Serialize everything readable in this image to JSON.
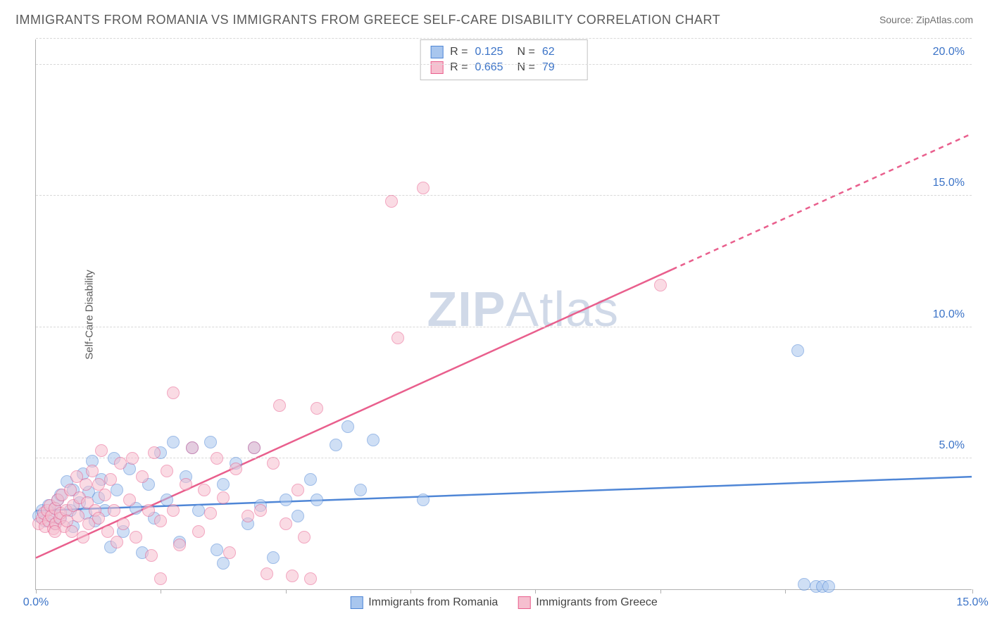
{
  "title": "IMMIGRANTS FROM ROMANIA VS IMMIGRANTS FROM GREECE SELF-CARE DISABILITY CORRELATION CHART",
  "source": "Source: ZipAtlas.com",
  "ylabel": "Self-Care Disability",
  "watermark_a": "ZIP",
  "watermark_b": "Atlas",
  "chart": {
    "type": "scatter",
    "xlim": [
      0,
      15
    ],
    "ylim": [
      0,
      21
    ],
    "x_ticks": [
      0,
      2,
      4,
      6,
      8,
      10,
      12,
      15
    ],
    "x_tick_labels": {
      "0": "0.0%",
      "15": "15.0%"
    },
    "y_ticks": [
      5,
      10,
      15,
      20
    ],
    "y_tick_labels": {
      "5": "5.0%",
      "10": "10.0%",
      "15": "15.0%",
      "20": "20.0%"
    },
    "background_color": "#ffffff",
    "grid_color": "#d8d8d8",
    "axis_color": "#b0b0b0",
    "tick_label_color": "#3b73c7",
    "title_color": "#5a5a5a",
    "marker_radius": 9,
    "marker_opacity": 0.55,
    "trend_width": 2.5
  },
  "series": [
    {
      "name": "Immigrants from Romania",
      "color_fill": "#a8c6ee",
      "color_stroke": "#4f86d6",
      "r": "0.125",
      "n": "62",
      "trend": {
        "x1": 0,
        "y1": 3.0,
        "x2": 15,
        "y2": 4.3,
        "dash_from_x": null
      },
      "points": [
        [
          0.05,
          2.8
        ],
        [
          0.1,
          3.0
        ],
        [
          0.15,
          2.6
        ],
        [
          0.2,
          3.2
        ],
        [
          0.25,
          2.9
        ],
        [
          0.3,
          3.1
        ],
        [
          0.3,
          2.5
        ],
        [
          0.35,
          3.4
        ],
        [
          0.4,
          2.7
        ],
        [
          0.4,
          3.6
        ],
        [
          0.5,
          4.1
        ],
        [
          0.55,
          3.0
        ],
        [
          0.6,
          2.4
        ],
        [
          0.6,
          3.8
        ],
        [
          0.7,
          3.3
        ],
        [
          0.75,
          4.4
        ],
        [
          0.8,
          2.9
        ],
        [
          0.85,
          3.7
        ],
        [
          0.9,
          4.9
        ],
        [
          0.95,
          2.6
        ],
        [
          1.0,
          3.5
        ],
        [
          1.05,
          4.2
        ],
        [
          1.1,
          3.0
        ],
        [
          1.2,
          1.6
        ],
        [
          1.25,
          5.0
        ],
        [
          1.3,
          3.8
        ],
        [
          1.4,
          2.2
        ],
        [
          1.5,
          4.6
        ],
        [
          1.6,
          3.1
        ],
        [
          1.7,
          1.4
        ],
        [
          1.8,
          4.0
        ],
        [
          1.9,
          2.7
        ],
        [
          2.0,
          5.2
        ],
        [
          2.1,
          3.4
        ],
        [
          2.2,
          5.6
        ],
        [
          2.3,
          1.8
        ],
        [
          2.4,
          4.3
        ],
        [
          2.5,
          5.4
        ],
        [
          2.6,
          3.0
        ],
        [
          2.8,
          5.6
        ],
        [
          2.9,
          1.5
        ],
        [
          3.0,
          4.0
        ],
        [
          3.0,
          1.0
        ],
        [
          3.2,
          4.8
        ],
        [
          3.4,
          2.5
        ],
        [
          3.5,
          5.4
        ],
        [
          3.6,
          3.2
        ],
        [
          3.8,
          1.2
        ],
        [
          4.0,
          3.4
        ],
        [
          4.2,
          2.8
        ],
        [
          4.4,
          4.2
        ],
        [
          4.5,
          3.4
        ],
        [
          4.8,
          5.5
        ],
        [
          5.0,
          6.2
        ],
        [
          5.2,
          3.8
        ],
        [
          5.4,
          5.7
        ],
        [
          6.2,
          3.4
        ],
        [
          12.2,
          9.1
        ],
        [
          12.5,
          0.1
        ],
        [
          12.6,
          0.1
        ],
        [
          12.7,
          0.1
        ],
        [
          12.3,
          0.2
        ]
      ]
    },
    {
      "name": "Immigrants from Greece",
      "color_fill": "#f6bfcf",
      "color_stroke": "#e95f8d",
      "r": "0.665",
      "n": "79",
      "trend": {
        "x1": 0,
        "y1": 1.2,
        "x2": 15,
        "y2": 17.4,
        "dash_from_x": 10.2
      },
      "points": [
        [
          0.05,
          2.5
        ],
        [
          0.1,
          2.7
        ],
        [
          0.12,
          2.9
        ],
        [
          0.15,
          2.4
        ],
        [
          0.18,
          3.0
        ],
        [
          0.2,
          2.6
        ],
        [
          0.22,
          3.2
        ],
        [
          0.25,
          2.8
        ],
        [
          0.28,
          2.3
        ],
        [
          0.3,
          3.1
        ],
        [
          0.32,
          2.5
        ],
        [
          0.35,
          3.4
        ],
        [
          0.38,
          2.7
        ],
        [
          0.4,
          2.9
        ],
        [
          0.42,
          3.6
        ],
        [
          0.45,
          2.4
        ],
        [
          0.48,
          3.0
        ],
        [
          0.5,
          2.6
        ],
        [
          0.55,
          3.8
        ],
        [
          0.58,
          2.2
        ],
        [
          0.6,
          3.2
        ],
        [
          0.65,
          4.3
        ],
        [
          0.68,
          2.8
        ],
        [
          0.7,
          3.5
        ],
        [
          0.75,
          2.0
        ],
        [
          0.8,
          4.0
        ],
        [
          0.82,
          3.3
        ],
        [
          0.85,
          2.5
        ],
        [
          0.9,
          4.5
        ],
        [
          0.95,
          3.0
        ],
        [
          1.0,
          2.7
        ],
        [
          1.05,
          5.3
        ],
        [
          1.1,
          3.6
        ],
        [
          1.15,
          2.2
        ],
        [
          1.2,
          4.2
        ],
        [
          1.25,
          3.0
        ],
        [
          1.3,
          1.8
        ],
        [
          1.35,
          4.8
        ],
        [
          1.4,
          2.5
        ],
        [
          1.5,
          3.4
        ],
        [
          1.55,
          5.0
        ],
        [
          1.6,
          2.0
        ],
        [
          1.7,
          4.3
        ],
        [
          1.8,
          3.0
        ],
        [
          1.85,
          1.3
        ],
        [
          1.9,
          5.2
        ],
        [
          2.0,
          2.6
        ],
        [
          2.1,
          4.5
        ],
        [
          2.2,
          3.0
        ],
        [
          2.2,
          7.5
        ],
        [
          2.3,
          1.7
        ],
        [
          2.4,
          4.0
        ],
        [
          2.5,
          5.4
        ],
        [
          2.6,
          2.2
        ],
        [
          2.7,
          3.8
        ],
        [
          2.8,
          2.9
        ],
        [
          2.9,
          5.0
        ],
        [
          3.0,
          3.5
        ],
        [
          3.1,
          1.4
        ],
        [
          3.2,
          4.6
        ],
        [
          3.4,
          2.8
        ],
        [
          3.5,
          5.4
        ],
        [
          3.6,
          3.0
        ],
        [
          3.7,
          0.6
        ],
        [
          3.8,
          4.8
        ],
        [
          3.9,
          7.0
        ],
        [
          4.0,
          2.5
        ],
        [
          4.1,
          0.5
        ],
        [
          4.2,
          3.8
        ],
        [
          4.3,
          2.0
        ],
        [
          4.4,
          0.4
        ],
        [
          4.5,
          6.9
        ],
        [
          5.8,
          9.6
        ],
        [
          5.7,
          14.8
        ],
        [
          6.2,
          15.3
        ],
        [
          10.0,
          11.6
        ],
        [
          1.0,
          4.0
        ],
        [
          0.3,
          2.2
        ],
        [
          2.0,
          0.4
        ]
      ]
    }
  ],
  "legend_top_labels": {
    "R": "R =",
    "N": "N ="
  }
}
